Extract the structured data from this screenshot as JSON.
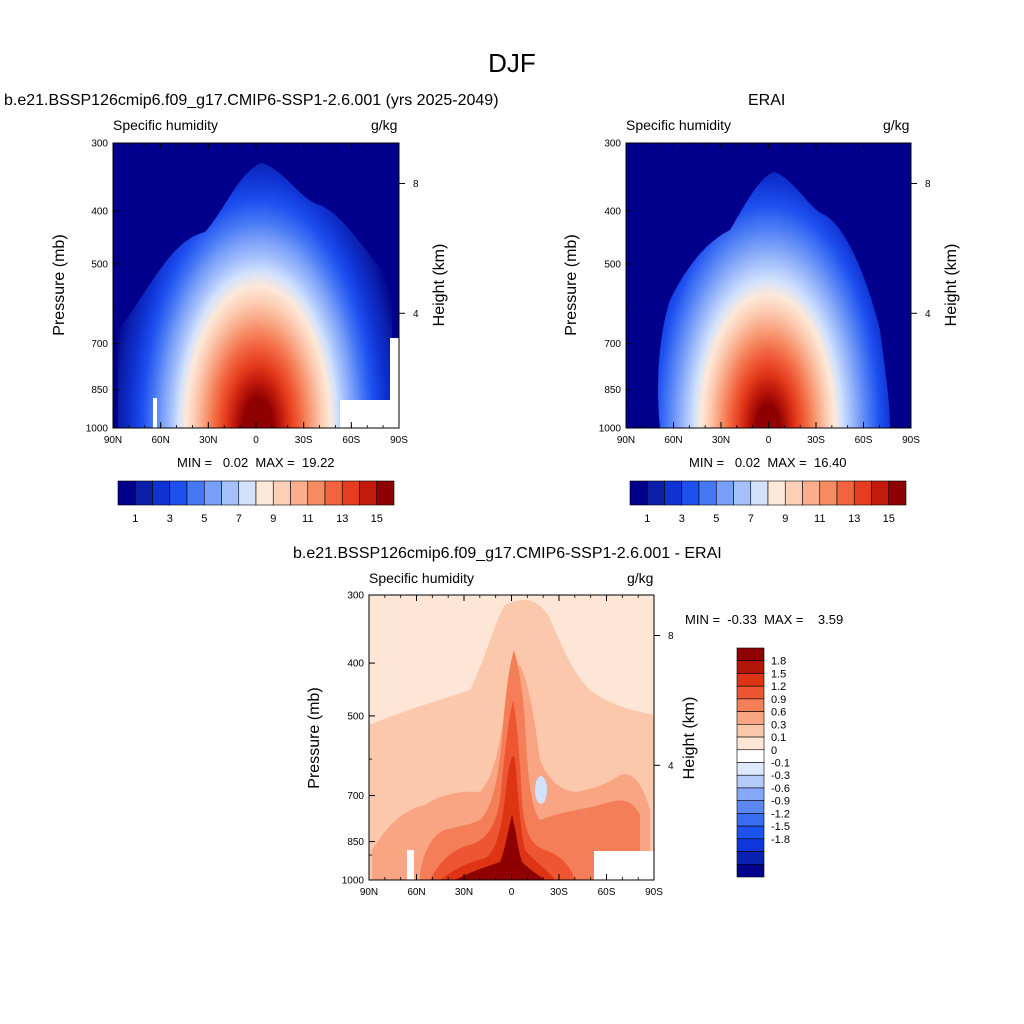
{
  "main_title": "DJF",
  "scale": {
    "abs_colors": [
      "#00008c",
      "#0a1ea8",
      "#0f32d2",
      "#1e50f0",
      "#4678f5",
      "#789ef8",
      "#a5c0fb",
      "#d2e2fd",
      "#fde8d8",
      "#fccfb6",
      "#faae8e",
      "#f68a63",
      "#f2643f",
      "#e53e1e",
      "#c21a0c",
      "#8f0000"
    ],
    "abs_ticks": [
      "1",
      "3",
      "5",
      "7",
      "9",
      "11",
      "13",
      "15"
    ],
    "diff_colors": [
      "#00008c",
      "#0a22b4",
      "#0f36dc",
      "#1e52f0",
      "#3a6cf3",
      "#5c88f6",
      "#86a8f9",
      "#b4cbfb",
      "#dde9fd",
      "#ffffff",
      "#fde6d6",
      "#fcc8ac",
      "#f9a482",
      "#f47e57",
      "#ee5532",
      "#dd3414",
      "#b31508",
      "#8f0000"
    ],
    "diff_labels": [
      "1.8",
      "1.5",
      "1.2",
      "0.9",
      "0.6",
      "0.3",
      "0.1",
      "0",
      "-0.1",
      "-0.3",
      "-0.6",
      "-0.9",
      "-1.2",
      "-1.5",
      "-1.8"
    ]
  },
  "panel1": {
    "title": "b.e21.BSSP126cmip6.f09_g17.CMIP6-SSP1-2.6.001 (yrs 2025-2049)",
    "left_label": "Specific humidity",
    "right_label": "g/kg",
    "ylabel": "Pressure (mb)",
    "y2label": "Height (km)",
    "stats": "MIN =   0.02  MAX =  19.22"
  },
  "panel2": {
    "title": "ERAI",
    "left_label": "Specific humidity",
    "right_label": "g/kg",
    "ylabel": "Pressure (mb)",
    "y2label": "Height (km)",
    "stats": "MIN =   0.02  MAX =  16.40"
  },
  "panel3": {
    "title": "b.e21.BSSP126cmip6.f09_g17.CMIP6-SSP1-2.6.001 - ERAI",
    "left_label": "Specific humidity",
    "right_label": "g/kg",
    "ylabel": "Pressure (mb)",
    "y2label": "Height (km)",
    "stats": "MIN =  -0.33  MAX =    3.59"
  },
  "chart_data": [
    {
      "type": "heatmap",
      "title": "b.e21.BSSP126cmip6.f09_g17.CMIP6-SSP1-2.6.001 (yrs 2025-2049)",
      "variable": "Specific humidity",
      "units": "g/kg",
      "xlabel": "",
      "ylabel": "Pressure (mb)",
      "y2label": "Height (km)",
      "x_ticks": [
        "90N",
        "60N",
        "30N",
        "0",
        "30S",
        "60S",
        "90S"
      ],
      "y_ticks": [
        "300",
        "400",
        "500",
        "700",
        "850",
        "1000"
      ],
      "y2_ticks": [
        "8",
        "4"
      ],
      "ylim": [
        1000,
        300
      ],
      "y_scale": "log",
      "min": 0.02,
      "max": 19.22,
      "colorbar_ticks": [
        1,
        3,
        5,
        7,
        9,
        11,
        13,
        15
      ],
      "peak": {
        "lat": -5,
        "pressure": 1000,
        "value": 19.22
      }
    },
    {
      "type": "heatmap",
      "title": "ERAI",
      "variable": "Specific humidity",
      "units": "g/kg",
      "xlabel": "",
      "ylabel": "Pressure (mb)",
      "y2label": "Height (km)",
      "x_ticks": [
        "90N",
        "60N",
        "30N",
        "0",
        "30S",
        "60S",
        "90S"
      ],
      "y_ticks": [
        "300",
        "400",
        "500",
        "700",
        "850",
        "1000"
      ],
      "y2_ticks": [
        "8",
        "4"
      ],
      "ylim": [
        1000,
        300
      ],
      "y_scale": "log",
      "min": 0.02,
      "max": 16.4,
      "colorbar_ticks": [
        1,
        3,
        5,
        7,
        9,
        11,
        13,
        15
      ],
      "peak": {
        "lat": -2,
        "pressure": 1000,
        "value": 16.4
      }
    },
    {
      "type": "heatmap",
      "title": "b.e21.BSSP126cmip6.f09_g17.CMIP6-SSP1-2.6.001 - ERAI",
      "variable": "Specific humidity",
      "units": "g/kg",
      "xlabel": "",
      "ylabel": "Pressure (mb)",
      "y2label": "Height (km)",
      "x_ticks": [
        "90N",
        "60N",
        "30N",
        "0",
        "30S",
        "60S",
        "90S"
      ],
      "y_ticks": [
        "300",
        "400",
        "500",
        "700",
        "850",
        "1000"
      ],
      "y2_ticks": [
        "8",
        "4"
      ],
      "ylim": [
        1000,
        300
      ],
      "y_scale": "log",
      "min": -0.33,
      "max": 3.59,
      "colorbar_labels": [
        "1.8",
        "1.5",
        "1.2",
        "0.9",
        "0.6",
        "0.3",
        "0.1",
        "0",
        "-0.1",
        "-0.3",
        "-0.6",
        "-0.9",
        "-1.2",
        "-1.5",
        "-1.8"
      ]
    }
  ]
}
